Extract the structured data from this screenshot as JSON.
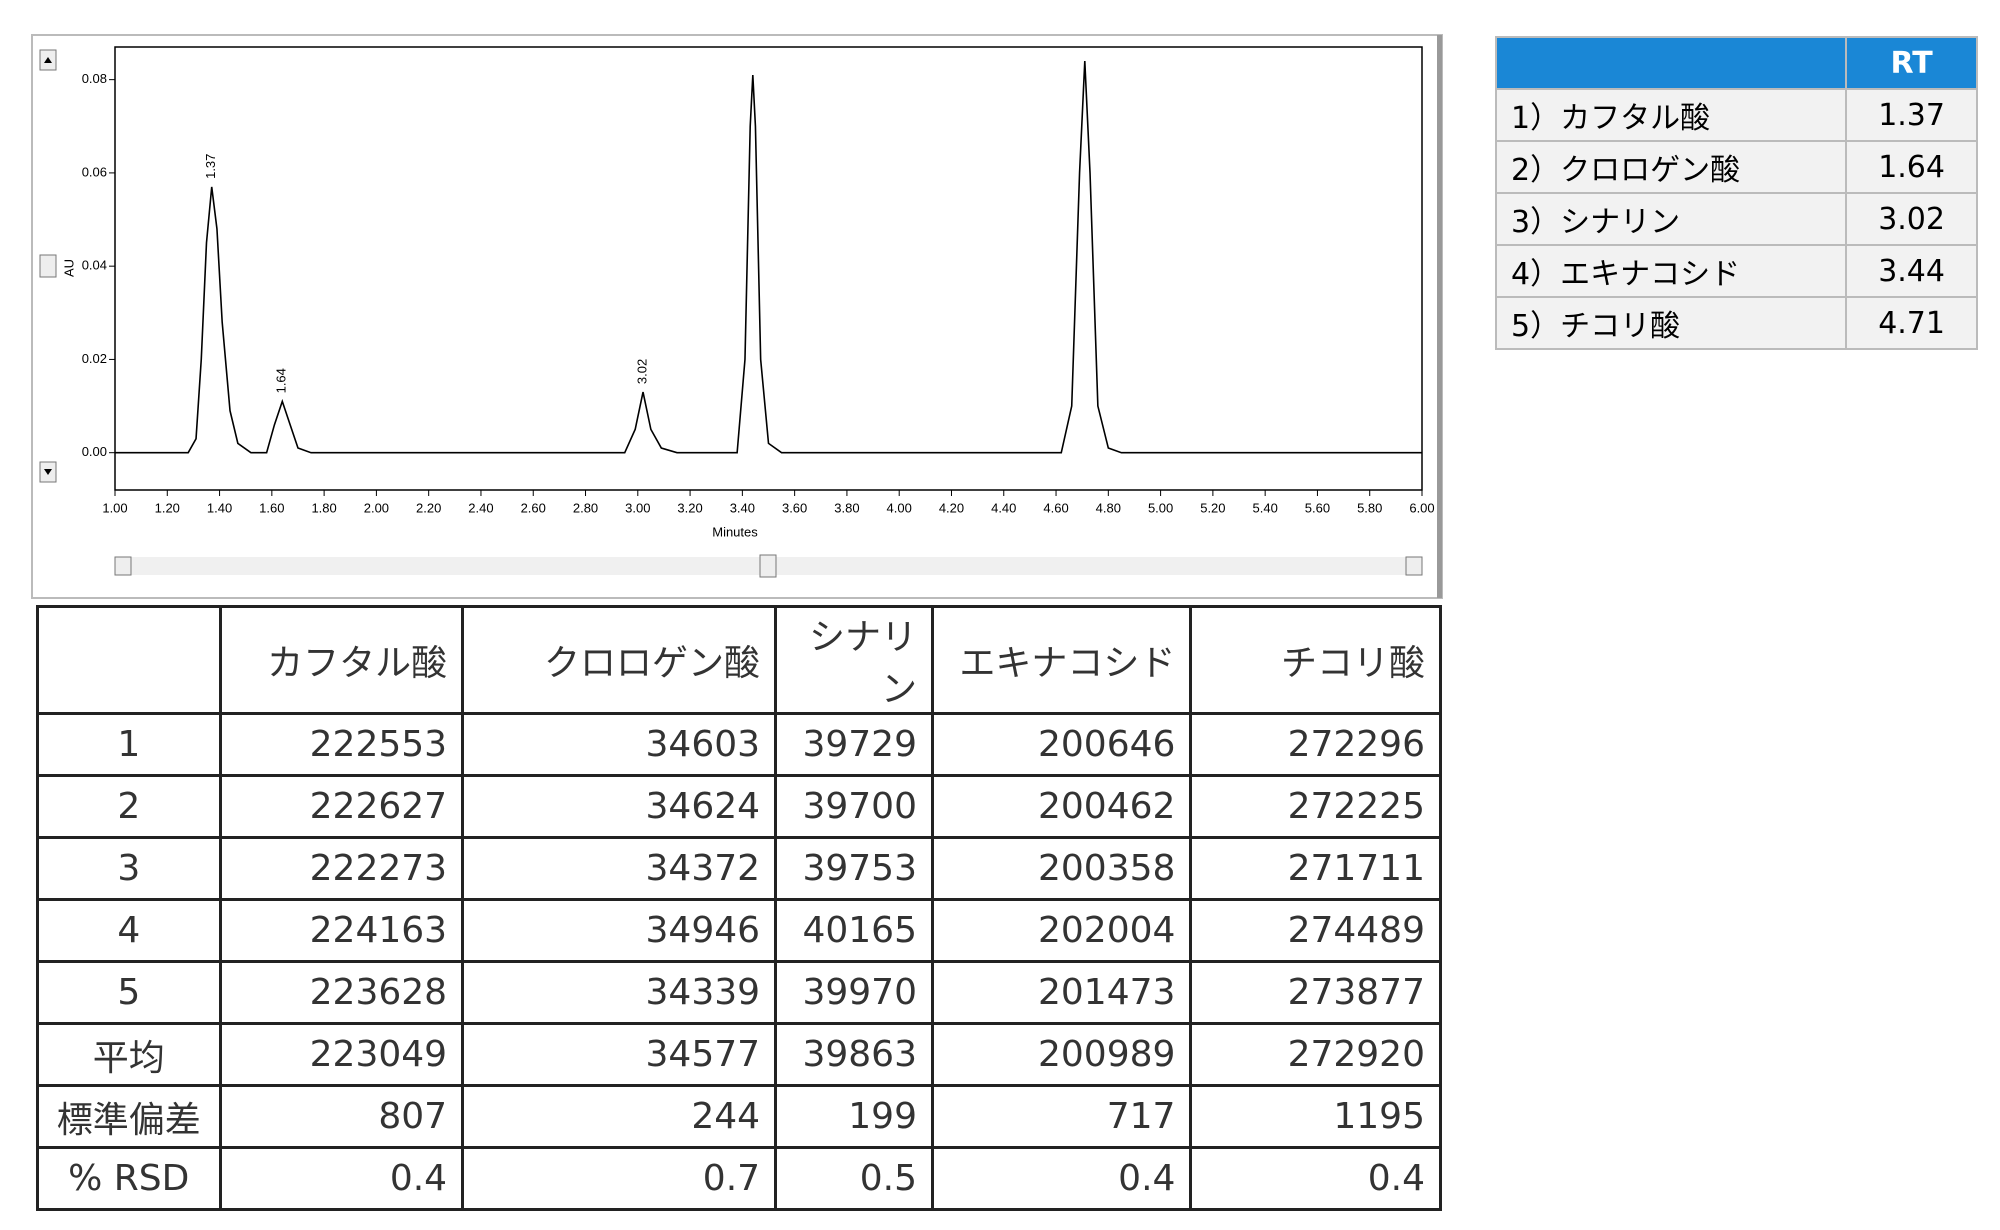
{
  "chart_data": {
    "type": "line",
    "x_label": "Minutes",
    "y_label": "AU",
    "xlim": [
      1.0,
      6.0
    ],
    "xticks": [
      {
        "value": 1.0,
        "label": "1.00"
      },
      {
        "value": 1.2,
        "label": "1.20"
      },
      {
        "value": 1.4,
        "label": "1.40"
      },
      {
        "value": 1.6,
        "label": "1.60"
      },
      {
        "value": 1.8,
        "label": "1.80"
      },
      {
        "value": 2.0,
        "label": "2.00"
      },
      {
        "value": 2.2,
        "label": "2.20"
      },
      {
        "value": 2.4,
        "label": "2.40"
      },
      {
        "value": 2.6,
        "label": "2.60"
      },
      {
        "value": 2.8,
        "label": "2.80"
      },
      {
        "value": 3.0,
        "label": "3.00"
      },
      {
        "value": 3.2,
        "label": "3.20"
      },
      {
        "value": 3.4,
        "label": "3.40"
      },
      {
        "value": 3.6,
        "label": "3.60"
      },
      {
        "value": 3.8,
        "label": "3.80"
      },
      {
        "value": 4.0,
        "label": "4.00"
      },
      {
        "value": 4.2,
        "label": "4.20"
      },
      {
        "value": 4.4,
        "label": "4.40"
      },
      {
        "value": 4.6,
        "label": "4.60"
      },
      {
        "value": 4.8,
        "label": "4.80"
      },
      {
        "value": 5.0,
        "label": "5.00"
      },
      {
        "value": 5.2,
        "label": "5.20"
      },
      {
        "value": 5.4,
        "label": "5.40"
      },
      {
        "value": 5.6,
        "label": "5.60"
      },
      {
        "value": 5.8,
        "label": "5.80"
      },
      {
        "value": 6.0,
        "label": "6.00"
      }
    ],
    "ylim": [
      -0.008,
      0.087
    ],
    "yticks": [
      {
        "value": 0,
        "label": "0.00"
      },
      0.02,
      0.04,
      0.06,
      0.08
    ],
    "peak_labels": [
      1.37,
      1.64,
      3.02
    ],
    "x": [
      1.0,
      1.28,
      1.31,
      1.33,
      1.35,
      1.37,
      1.39,
      1.41,
      1.44,
      1.47,
      1.52,
      1.58,
      1.61,
      1.64,
      1.67,
      1.7,
      1.75,
      2.1,
      2.95,
      2.99,
      3.02,
      3.05,
      3.09,
      3.15,
      3.38,
      3.41,
      3.43,
      3.44,
      3.45,
      3.47,
      3.5,
      3.55,
      4.62,
      4.66,
      4.69,
      4.71,
      4.73,
      4.76,
      4.8,
      4.85,
      6.0
    ],
    "series": [
      {
        "color": "#000000",
        "values": [
          0,
          0,
          0.003,
          0.02,
          0.045,
          0.057,
          0.048,
          0.028,
          0.009,
          0.002,
          0,
          0,
          0.006,
          0.011,
          0.006,
          0.001,
          0,
          0,
          0,
          0.005,
          0.013,
          0.005,
          0.001,
          0,
          0,
          0.02,
          0.07,
          0.081,
          0.07,
          0.02,
          0.002,
          0,
          0,
          0.01,
          0.06,
          0.084,
          0.06,
          0.01,
          0.001,
          0,
          0
        ]
      }
    ]
  },
  "rt_table": {
    "header": "RT",
    "rows": [
      [
        "1）カフタル酸",
        1.37
      ],
      [
        "2）クロロゲン酸",
        1.64
      ],
      [
        "3）シナリン",
        3.02
      ],
      [
        "4）エキナコシド",
        3.44
      ],
      [
        "5）チコリ酸",
        4.71
      ]
    ]
  },
  "table": {
    "columns": [
      "カフタル酸",
      "クロロゲン酸",
      "シナリン",
      "エキナコシド",
      "チコリ酸"
    ],
    "rows": [
      {
        "label": "1",
        "values": [
          222553,
          34603,
          39729,
          200646,
          272296
        ]
      },
      {
        "label": "2",
        "values": [
          222627,
          34624,
          39700,
          200462,
          272225
        ]
      },
      {
        "label": "3",
        "values": [
          222273,
          34372,
          39753,
          200358,
          271711
        ]
      },
      {
        "label": "4",
        "values": [
          224163,
          34946,
          40165,
          202004,
          274489
        ]
      },
      {
        "label": "5",
        "values": [
          223628,
          34339,
          39970,
          201473,
          273877
        ]
      },
      {
        "label": "平均",
        "values": [
          223049,
          34577,
          39863,
          200989,
          272920
        ]
      },
      {
        "label": "標準偏差",
        "values": [
          807,
          244,
          199,
          717,
          1195
        ]
      },
      {
        "label": "% RSD",
        "values": [
          0.4,
          0.7,
          0.5,
          0.4,
          0.4
        ]
      }
    ]
  }
}
